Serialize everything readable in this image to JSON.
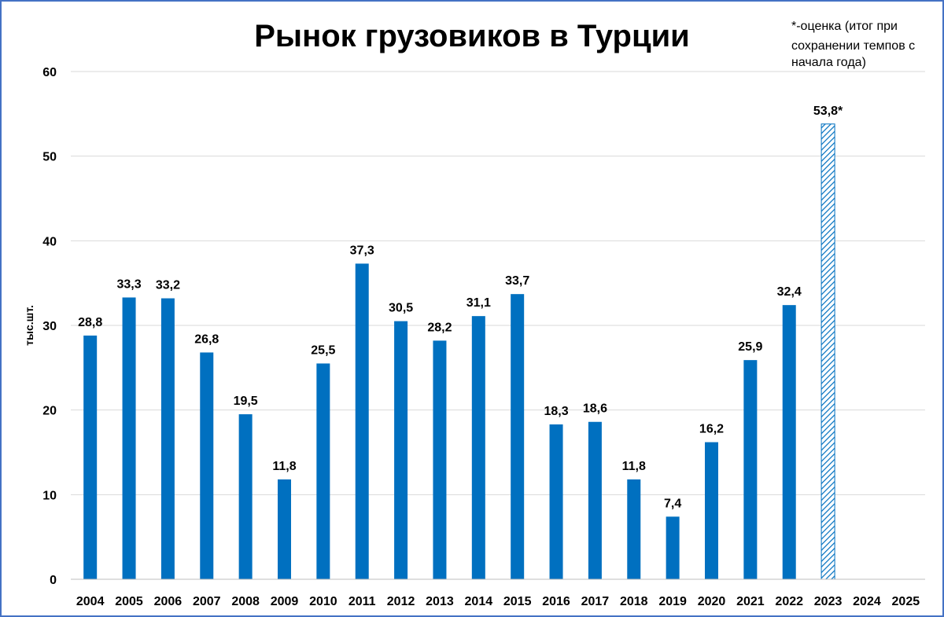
{
  "chart_data": {
    "type": "bar",
    "title": "Рынок грузовиков в Турции",
    "note_lines": [
      "*-оценка (итог при",
      "сохранении темпов с",
      "начала года)"
    ],
    "ylabel": "тыс.шт.",
    "xlabel": "",
    "ylim": [
      0,
      60
    ],
    "yticks": [
      0,
      10,
      20,
      30,
      40,
      50,
      60
    ],
    "grid": true,
    "categories": [
      "2004",
      "2005",
      "2006",
      "2007",
      "2008",
      "2009",
      "2010",
      "2011",
      "2012",
      "2013",
      "2014",
      "2015",
      "2016",
      "2017",
      "2018",
      "2019",
      "2020",
      "2021",
      "2022",
      "2023",
      "2024",
      "2025"
    ],
    "values": [
      28.8,
      33.3,
      33.2,
      26.8,
      19.5,
      11.8,
      25.5,
      37.3,
      30.5,
      28.2,
      31.1,
      33.7,
      18.3,
      18.6,
      11.8,
      7.4,
      16.2,
      25.9,
      32.4,
      53.8,
      null,
      null
    ],
    "data_labels": [
      "28,8",
      "33,3",
      "33,2",
      "26,8",
      "19,5",
      "11,8",
      "25,5",
      "37,3",
      "30,5",
      "28,2",
      "31,1",
      "33,7",
      "18,3",
      "18,6",
      "11,8",
      "7,4",
      "16,2",
      "25,9",
      "32,4",
      "53,8*",
      "",
      ""
    ],
    "estimated": [
      false,
      false,
      false,
      false,
      false,
      false,
      false,
      false,
      false,
      false,
      false,
      false,
      false,
      false,
      false,
      false,
      false,
      false,
      false,
      true,
      false,
      false
    ],
    "colors": {
      "bar": "#0070c0",
      "frame": "#4472c4",
      "grid": "#d9d9d9"
    }
  }
}
